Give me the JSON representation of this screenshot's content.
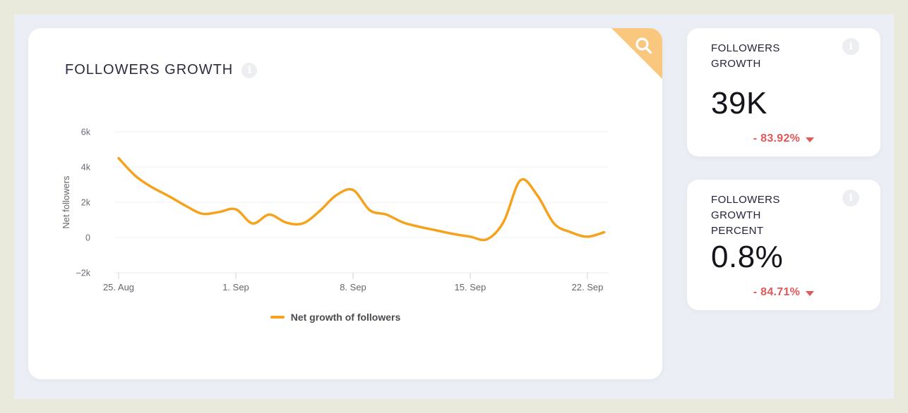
{
  "colors": {
    "accent_line": "#f5a31e",
    "ribbon_orange": "#f9c87e",
    "negative_red": "#e25757",
    "panel_background": "#ebeef4",
    "page_border": "#e9e9dc",
    "card_background": "#ffffff"
  },
  "chart_card": {
    "info_icon": "info-icon",
    "corner_icon": "magnifier-zoom-icon"
  },
  "chart_data": {
    "type": "line",
    "title": "FOLLOWERS GROWTH",
    "xlabel": "",
    "ylabel": "Net followers",
    "x": [
      "25 Aug",
      "26 Aug",
      "27 Aug",
      "28 Aug",
      "29 Aug",
      "30 Aug",
      "31 Aug",
      "1 Sep",
      "2 Sep",
      "3 Sep",
      "4 Sep",
      "5 Sep",
      "6 Sep",
      "7 Sep",
      "8 Sep",
      "9 Sep",
      "10 Sep",
      "11 Sep",
      "12 Sep",
      "13 Sep",
      "14 Sep",
      "15 Sep",
      "16 Sep",
      "17 Sep",
      "18 Sep",
      "19 Sep",
      "20 Sep",
      "21 Sep",
      "22 Sep",
      "23 Sep"
    ],
    "series": [
      {
        "name": "Net growth of followers",
        "color": "#f5a31e",
        "values": [
          4500,
          3500,
          2850,
          2350,
          1800,
          1350,
          1450,
          1600,
          800,
          1300,
          850,
          800,
          1500,
          2400,
          2700,
          1550,
          1300,
          850,
          600,
          400,
          200,
          50,
          -100,
          900,
          3250,
          2400,
          800,
          300,
          50,
          300
        ]
      }
    ],
    "xtick_labels": [
      "25. Aug",
      "1. Sep",
      "8. Sep",
      "15. Sep",
      "22. Sep"
    ],
    "xtick_day_indices": [
      0,
      7,
      14,
      21,
      28
    ],
    "ytick_labels": [
      "6k",
      "4k",
      "2k",
      "0",
      "−2k"
    ],
    "ytick_values": [
      6000,
      4000,
      2000,
      0,
      -2000
    ],
    "ylim": [
      -2000,
      6000
    ],
    "grid": "horizontal-only",
    "legend_position": "bottom-center",
    "curve": "smooth-spline"
  },
  "stat_cards": [
    {
      "label": "FOLLOWERS GROWTH",
      "value": "39K",
      "change": "- 83.92%",
      "direction": "down"
    },
    {
      "label": "FOLLOWERS GROWTH PERCENT",
      "value": "0.8%",
      "change": "- 84.71%",
      "direction": "down"
    }
  ]
}
